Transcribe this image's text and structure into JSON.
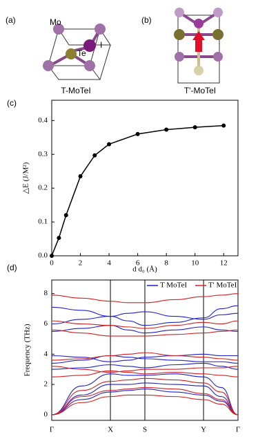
{
  "structures": {
    "a": {
      "label": "(a)",
      "atoms": [
        "Mo",
        "Te",
        "I"
      ],
      "caption": "T-MoTeI"
    },
    "b": {
      "label": "(b)",
      "caption": "T'-MoTeI"
    }
  },
  "chart_data": [
    {
      "type": "line",
      "panel_label": "(c)",
      "x_label": "d d₀ (Å)",
      "y_label": "△E (J/M²)",
      "x": [
        0,
        0.5,
        1,
        2,
        3,
        4,
        6,
        8,
        10,
        12
      ],
      "values": [
        0,
        0.053,
        0.12,
        0.235,
        0.297,
        0.33,
        0.36,
        0.373,
        0.38,
        0.385
      ],
      "color": "#000000",
      "xlim": [
        0,
        13
      ],
      "ylim": [
        0,
        0.46
      ],
      "xticks": [
        0,
        2,
        4,
        6,
        8,
        10,
        12
      ],
      "yticks": [
        {
          "value": 0,
          "label": "0.0"
        },
        0.1,
        0.2,
        0.3,
        0.4
      ]
    },
    {
      "type": "bands",
      "panel_label": "(d)",
      "y_label": "Frequency (THz)",
      "x": [
        0,
        0.16,
        0.315,
        0.41,
        0.5,
        0.66,
        0.815,
        0.91,
        1.0
      ],
      "xlim": [
        0,
        1
      ],
      "ylim": [
        -0.37,
        8.9
      ],
      "xticks": [
        {
          "value": 0,
          "label": "Γ"
        },
        {
          "value": 0.315,
          "label": "X"
        },
        {
          "value": 0.5,
          "label": "S"
        },
        {
          "value": 0.815,
          "label": "Y"
        },
        {
          "value": 1.0,
          "label": "Γ"
        }
      ],
      "yticks": [
        0,
        2,
        4,
        6,
        8
      ],
      "legend": "top-right",
      "series": [
        {
          "name": "T MoTeI",
          "color": "#1f1fd0",
          "values": [
            [
              0,
              1.0,
              1.5,
              1.6,
              1.7,
              1.5,
              1.3,
              0.9,
              0
            ],
            [
              0,
              1.3,
              2.0,
              2.0,
              2.1,
              2.0,
              1.9,
              1.2,
              0
            ],
            [
              0,
              1.9,
              2.7,
              2.6,
              2.6,
              2.7,
              2.5,
              1.8,
              0
            ],
            [
              3.0,
              3.1,
              3.3,
              3.2,
              3.1,
              3.3,
              3.4,
              3.2,
              3.0
            ],
            [
              3.4,
              3.6,
              3.9,
              3.8,
              3.7,
              3.6,
              3.5,
              3.5,
              3.4
            ],
            [
              3.9,
              3.8,
              3.5,
              3.6,
              3.8,
              3.9,
              4.0,
              3.9,
              3.9
            ],
            [
              5.5,
              5.7,
              5.9,
              5.6,
              5.4,
              5.6,
              5.8,
              5.6,
              5.5
            ],
            [
              6.0,
              6.3,
              6.5,
              6.7,
              6.8,
              6.5,
              6.3,
              6.6,
              6.7
            ],
            [
              7.1,
              6.9,
              6.5,
              6.2,
              5.9,
              6.1,
              6.4,
              7.0,
              7.2
            ]
          ]
        },
        {
          "name": "T' MoTeI",
          "color": "#d42020",
          "values": [
            [
              0,
              0.8,
              1.2,
              1.3,
              1.3,
              1.2,
              1.0,
              0.7,
              0
            ],
            [
              0,
              1.2,
              1.6,
              1.7,
              1.8,
              1.7,
              1.4,
              1.0,
              0
            ],
            [
              0,
              1.6,
              2.2,
              2.3,
              2.4,
              2.3,
              2.1,
              1.5,
              0
            ],
            [
              2.5,
              2.6,
              2.9,
              2.8,
              2.7,
              2.8,
              2.7,
              2.6,
              2.5
            ],
            [
              3.2,
              3.0,
              2.8,
              2.9,
              3.0,
              3.0,
              3.1,
              3.1,
              3.2
            ],
            [
              3.6,
              3.7,
              3.9,
              4.0,
              4.1,
              3.9,
              3.8,
              3.7,
              3.6
            ],
            [
              5.6,
              5.4,
              5.2,
              5.2,
              5.2,
              5.3,
              5.4,
              5.5,
              5.6
            ],
            [
              6.2,
              6.0,
              5.9,
              5.8,
              5.7,
              5.9,
              6.1,
              6.0,
              6.2
            ],
            [
              7.9,
              7.7,
              7.5,
              7.4,
              7.4,
              7.6,
              7.8,
              7.9,
              8.0
            ]
          ]
        }
      ]
    }
  ]
}
